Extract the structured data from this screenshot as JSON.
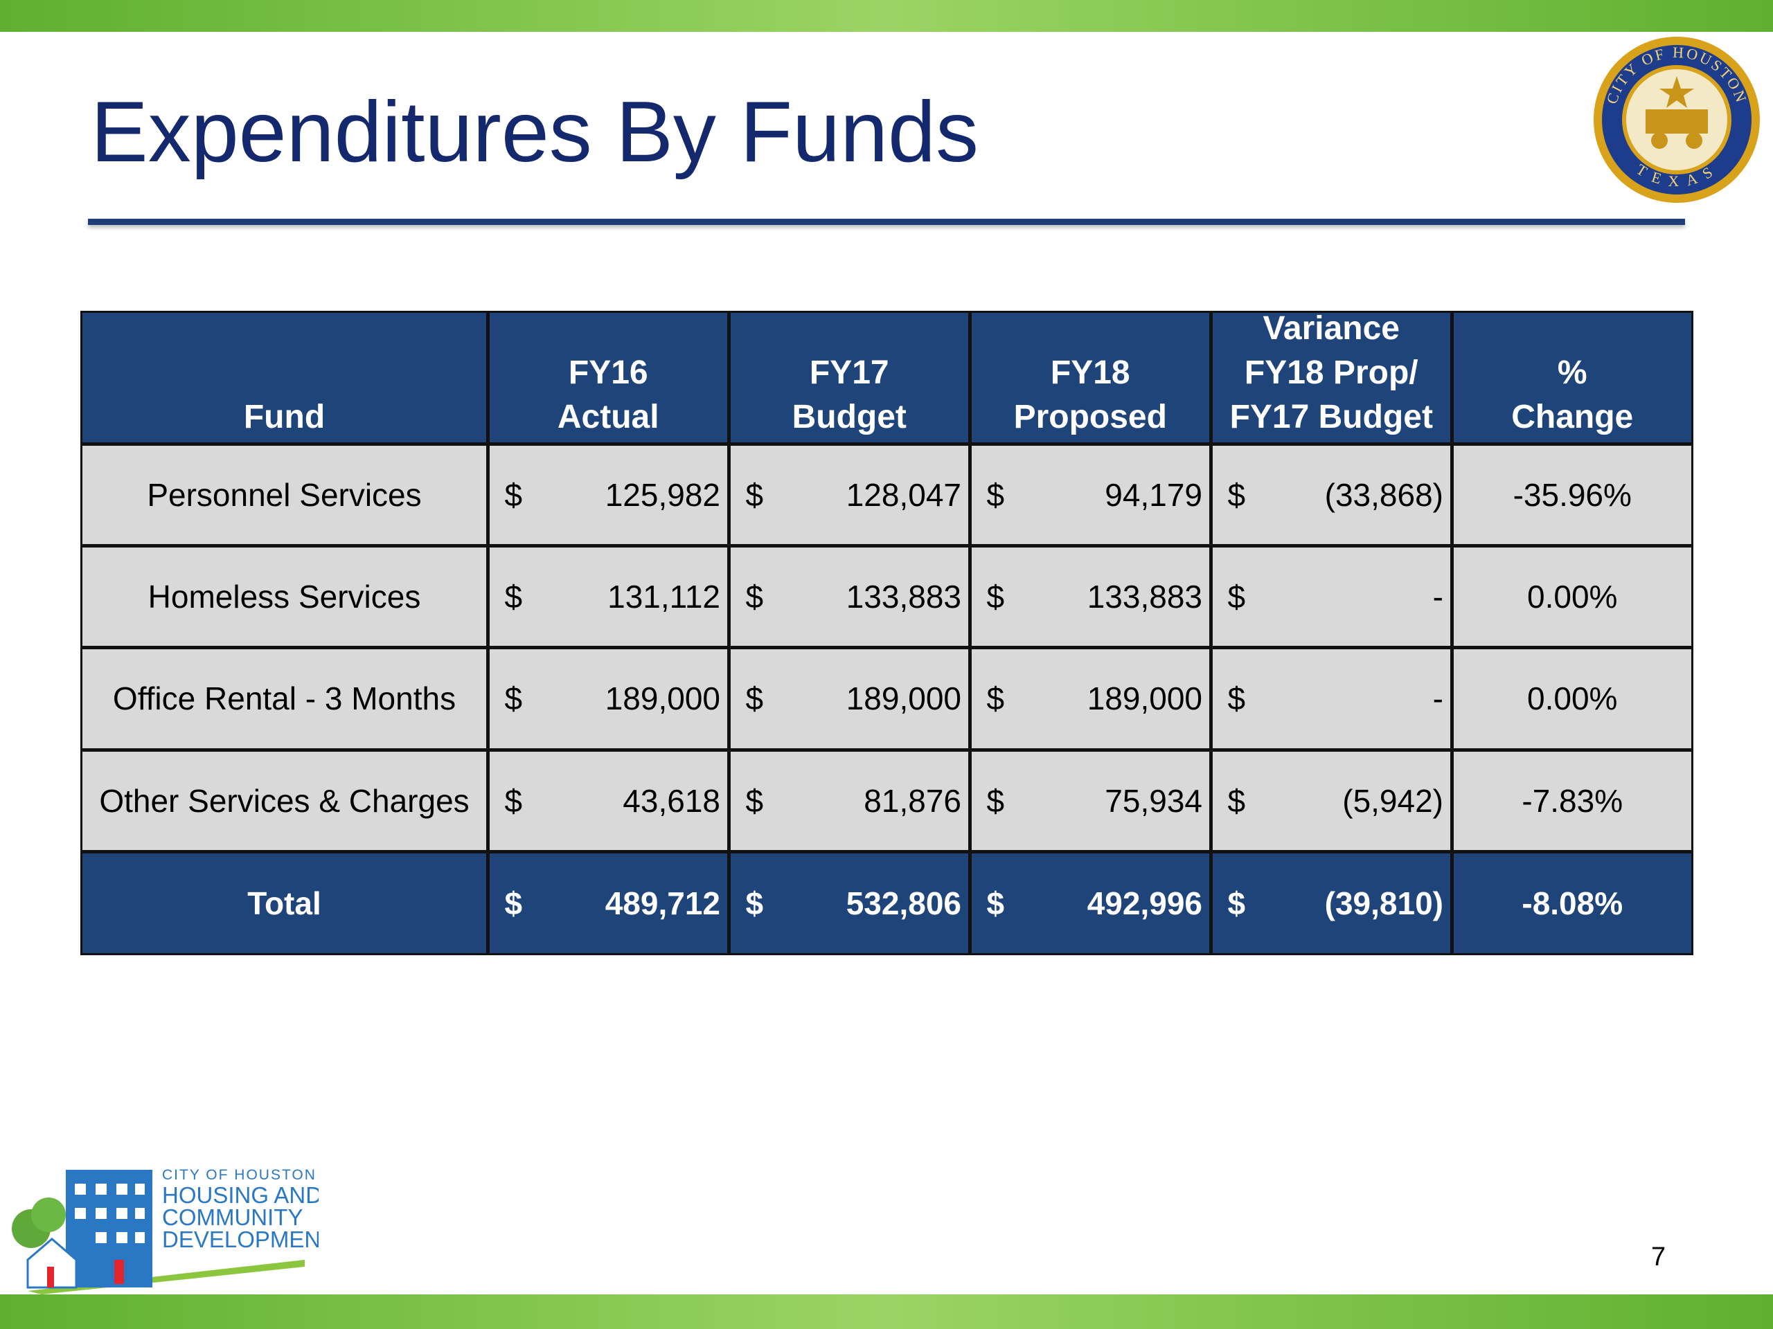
{
  "header": {
    "title": "Expenditures By Funds"
  },
  "seal": {
    "top": "CITY OF HOUSTON",
    "bottom": "TEXAS"
  },
  "table": {
    "headers": [
      [
        "Fund"
      ],
      [
        "FY16",
        "Actual"
      ],
      [
        "FY17",
        "Budget"
      ],
      [
        "FY18",
        "Proposed"
      ],
      [
        "Variance",
        "FY18 Prop/",
        "FY17 Budget"
      ],
      [
        "%",
        "Change"
      ]
    ],
    "rows": [
      [
        "Personnel Services",
        "$",
        "125,982",
        "$",
        "128,047",
        "$",
        "94,179",
        "$",
        "(33,868)",
        "-35.96%"
      ],
      [
        "Homeless Services",
        "$",
        "131,112",
        "$",
        "133,883",
        "$",
        "133,883",
        "$",
        "-",
        "0.00%"
      ],
      [
        "Office Rental - 3 Months",
        "$",
        "189,000",
        "$",
        "189,000",
        "$",
        "189,000",
        "$",
        "-",
        "0.00%"
      ],
      [
        "Other Services & Charges",
        "$",
        "43,618",
        "$",
        "81,876",
        "$",
        "75,934",
        "$",
        "(5,942)",
        "-7.83%"
      ]
    ],
    "total": [
      "Total",
      "$",
      "489,712",
      "$",
      "532,806",
      "$",
      "492,996",
      "$",
      "(39,810)",
      "-8.08%"
    ]
  },
  "logo": {
    "city": "CITY OF HOUSTON",
    "lines": [
      "HOUSING AND",
      "COMMUNITY",
      "DEVELOPMENT"
    ]
  },
  "page_number": "7"
}
